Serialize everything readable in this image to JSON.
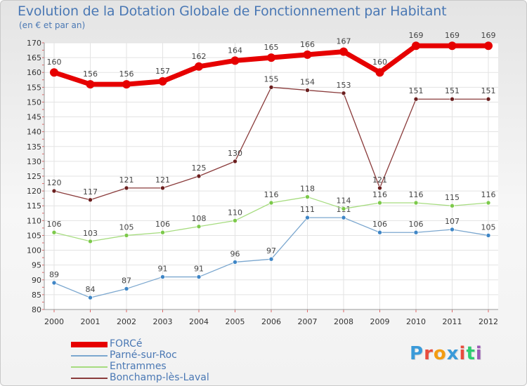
{
  "header": {
    "title": "Evolution de la Dotation Globale de Fonctionnement par Habitant",
    "subtitle": "(en € et par an)"
  },
  "logo": {
    "text": "Proxiti",
    "colors": [
      "#3a9ad9",
      "#e84c3d",
      "#f39c12",
      "#3a9ad9",
      "#e84c3d",
      "#2ecc71",
      "#9b59b6"
    ]
  },
  "chart_data": {
    "type": "line",
    "title": "Evolution de la Dotation Globale de Fonctionnement par Habitant",
    "subtitle": "(en € et par an)",
    "xlabel": "",
    "ylabel": "",
    "categories": [
      "2000",
      "2001",
      "2002",
      "2003",
      "2004",
      "2005",
      "2006",
      "2007",
      "2008",
      "2009",
      "2010",
      "2011",
      "2012"
    ],
    "ylim": [
      80,
      170
    ],
    "yticks": [
      80,
      85,
      90,
      95,
      100,
      105,
      110,
      115,
      120,
      125,
      130,
      135,
      140,
      145,
      150,
      155,
      160,
      165,
      170
    ],
    "grid": true,
    "legend_position": "bottom-left",
    "series": [
      {
        "name": "FORCé",
        "color": "#e60000",
        "marker_color": "#e60000",
        "emphasis": true,
        "values": [
          160,
          156,
          156,
          157,
          162,
          164,
          165,
          166,
          167,
          160,
          169,
          169,
          169
        ]
      },
      {
        "name": "Parné-sur-Roc",
        "color": "#7ba7cf",
        "marker_color": "#3f86c6",
        "values": [
          89,
          84,
          87,
          91,
          91,
          96,
          97,
          111,
          111,
          106,
          106,
          107,
          105
        ]
      },
      {
        "name": "Entrammes",
        "color": "#a6dc7f",
        "marker_color": "#7cc94a",
        "values": [
          106,
          103,
          105,
          106,
          108,
          110,
          116,
          118,
          114,
          116,
          116,
          115,
          116
        ]
      },
      {
        "name": "Bonchamp-lès-Laval",
        "color": "#8a3b3b",
        "marker_color": "#6b1f1f",
        "values": [
          120,
          117,
          121,
          121,
          125,
          130,
          155,
          154,
          153,
          121,
          151,
          151,
          151
        ]
      }
    ]
  }
}
